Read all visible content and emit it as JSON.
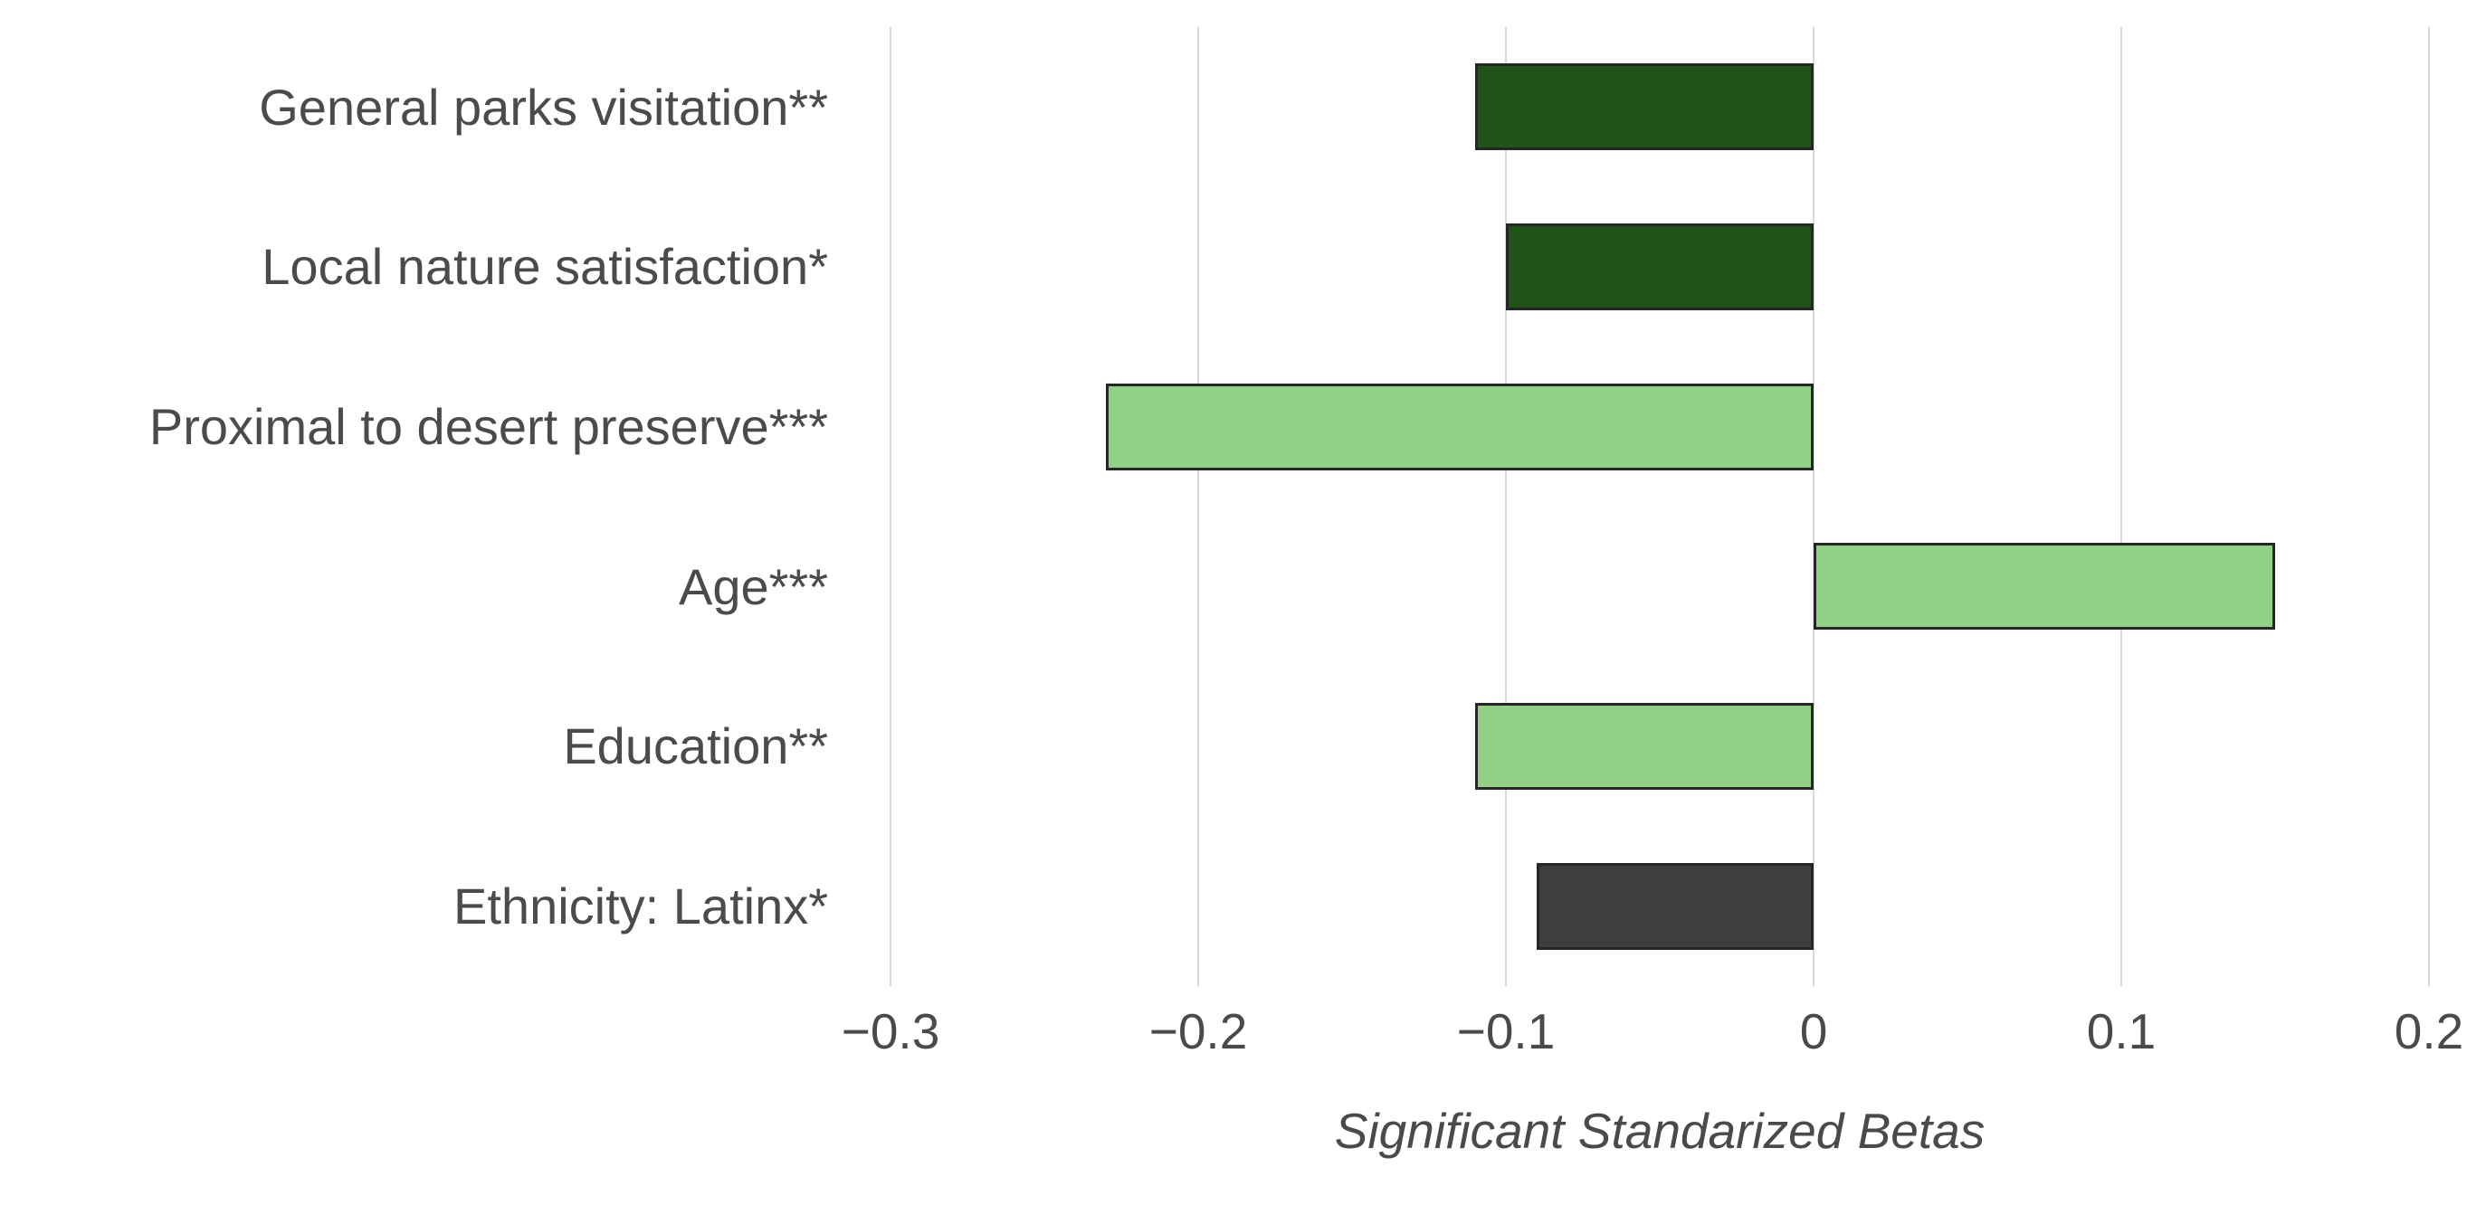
{
  "chart_data": {
    "type": "bar",
    "orientation": "horizontal",
    "title": "",
    "xlabel": "Significant Standarized Betas",
    "ylabel": "",
    "categories": [
      "General parks visitation**",
      "Local nature satisfaction*",
      "Proximal to desert preserve***",
      "Age***",
      "Education**",
      "Ethnicity: Latinx*"
    ],
    "values": [
      -0.11,
      -0.1,
      -0.23,
      0.15,
      -0.11,
      -0.09
    ],
    "bar_colors": [
      "#205416",
      "#205416",
      "#92d086",
      "#92d086",
      "#92d086",
      "#3e3e3e"
    ],
    "bar_border_color": "#262626",
    "xlim": [
      -0.3,
      0.2
    ],
    "x_ticks": [
      -0.3,
      -0.2,
      -0.1,
      0,
      0.1,
      0.2
    ],
    "x_tick_labels": [
      "−0.3",
      "−0.2",
      "−0.1",
      "0",
      "0.1",
      "0.2"
    ],
    "grid": "vertical",
    "gridline_color": "#d9d9d9",
    "text_color": "#4a4a4a",
    "background": "#ffffff",
    "legend_position": "none"
  }
}
